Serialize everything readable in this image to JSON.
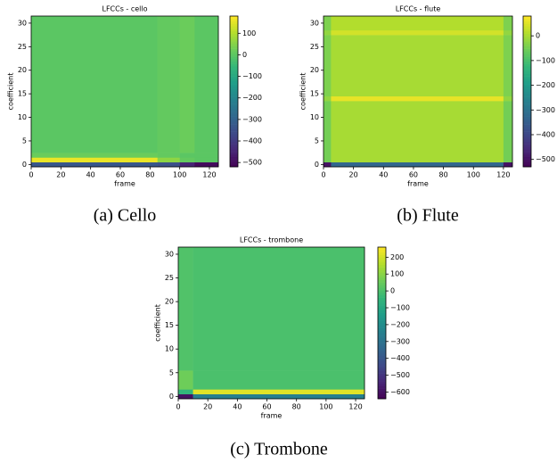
{
  "chart_data": [
    {
      "type": "heatmap",
      "title": "LFCCs - cello",
      "x_label": "frame",
      "y_label": "coefficient",
      "caption": "(a) Cello",
      "colormap": "viridis",
      "x_bins": [
        0,
        85,
        100,
        110,
        126
      ],
      "y_bins": [
        -0.5,
        0.5,
        1.5,
        2.5,
        31.5
      ],
      "z": [
        [
          -330,
          -350,
          -450,
          -500
        ],
        [
          160,
          60,
          10,
          0
        ],
        [
          20,
          10,
          0,
          0
        ],
        [
          0,
          10,
          20,
          0
        ]
      ],
      "xlim": [
        0,
        126
      ],
      "ylim": [
        -0.5,
        31.5
      ],
      "xticks": [
        0,
        20,
        40,
        60,
        80,
        100,
        120
      ],
      "yticks": [
        0,
        5,
        10,
        15,
        20,
        25,
        30
      ],
      "clim": [
        -520,
        180
      ],
      "cticks": [
        100,
        0,
        {
          "value": -100,
          "label": "−100"
        },
        {
          "value": -200,
          "label": "−200"
        },
        {
          "value": -300,
          "label": "−300"
        },
        {
          "value": -400,
          "label": "−400"
        },
        {
          "value": -500,
          "label": "−500"
        }
      ]
    },
    {
      "type": "heatmap",
      "title": "LFCCs - flute",
      "x_label": "frame",
      "y_label": "coefficient",
      "caption": "(b) Flute",
      "colormap": "viridis",
      "x_bins": [
        0,
        5,
        120,
        126
      ],
      "y_bins": [
        -0.5,
        0.5,
        13.5,
        14.5,
        27.5,
        28.5,
        31.5
      ],
      "z": [
        [
          -500,
          -330,
          -500
        ],
        [
          -50,
          0,
          -50
        ],
        [
          -20,
          60,
          -20
        ],
        [
          -40,
          0,
          -40
        ],
        [
          -20,
          40,
          -20
        ],
        [
          -40,
          10,
          -40
        ]
      ],
      "xlim": [
        0,
        126
      ],
      "ylim": [
        -0.5,
        31.5
      ],
      "xticks": [
        0,
        20,
        40,
        60,
        80,
        100,
        120
      ],
      "yticks": [
        0,
        5,
        10,
        15,
        20,
        25,
        30
      ],
      "clim": [
        -530,
        80
      ],
      "cticks": [
        0,
        {
          "value": -100,
          "label": "−100"
        },
        {
          "value": -200,
          "label": "−200"
        },
        {
          "value": -300,
          "label": "−300"
        },
        {
          "value": -400,
          "label": "−400"
        },
        {
          "value": -500,
          "label": "−500"
        }
      ]
    },
    {
      "type": "heatmap",
      "title": "LFCCs - trombone",
      "x_label": "frame",
      "y_label": "coefficient",
      "caption": "(c) Trombone",
      "colormap": "viridis",
      "x_bins": [
        0,
        10,
        126
      ],
      "y_bins": [
        -0.5,
        0.5,
        1.5,
        5.5,
        31.5
      ],
      "z": [
        [
          -600,
          -250
        ],
        [
          -50,
          220
        ],
        [
          60,
          0
        ],
        [
          10,
          0
        ]
      ],
      "xlim": [
        0,
        126
      ],
      "ylim": [
        -0.5,
        31.5
      ],
      "xticks": [
        0,
        20,
        40,
        60,
        80,
        100,
        120
      ],
      "yticks": [
        0,
        5,
        10,
        15,
        20,
        25,
        30
      ],
      "clim": [
        -640,
        260
      ],
      "cticks": [
        200,
        100,
        0,
        {
          "value": -100,
          "label": "−100"
        },
        {
          "value": -200,
          "label": "−200"
        },
        {
          "value": -300,
          "label": "−300"
        },
        {
          "value": -400,
          "label": "−400"
        },
        {
          "value": -500,
          "label": "−500"
        },
        {
          "value": -600,
          "label": "−600"
        }
      ]
    }
  ]
}
